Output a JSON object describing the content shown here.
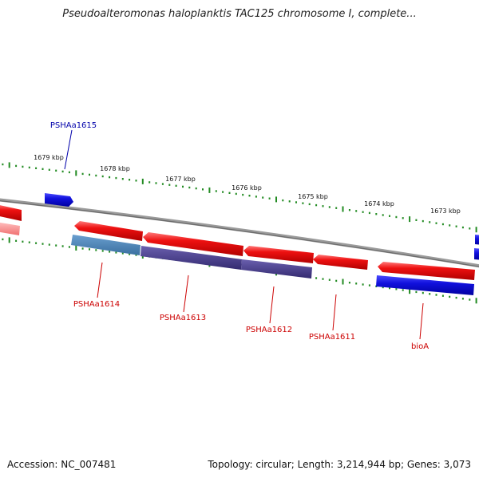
{
  "title": "Pseudoalteromonas haloplanktis TAC125 chromosome I, complete...",
  "footer": {
    "accession": "Accession: NC_007481",
    "summary": "Topology: circular; Length: 3,214,944 bp; Genes: 3,073"
  },
  "kbp_labels": [
    "1679 kbp",
    "1678 kbp",
    "1677 kbp",
    "1676 kbp",
    "1675 kbp",
    "1674 kbp",
    "1673 kbp"
  ],
  "gene_labels": [
    {
      "text": "PSHAa1615",
      "color": "#0000aa"
    },
    {
      "text": "PSHAa1614",
      "color": "#cc0000"
    },
    {
      "text": "PSHAa1613",
      "color": "#cc0000"
    },
    {
      "text": "PSHAa1612",
      "color": "#cc0000"
    },
    {
      "text": "PSHAa1611",
      "color": "#cc0000"
    },
    {
      "text": "bioA",
      "color": "#cc0000"
    }
  ],
  "colors": {
    "red_feature": "#ee1111",
    "blue_feature": "#1111dd",
    "steel_feature": "#4a7fb0",
    "purple_feature": "#4a3f8a",
    "backbone": "#808080",
    "tick": "#228b22"
  }
}
